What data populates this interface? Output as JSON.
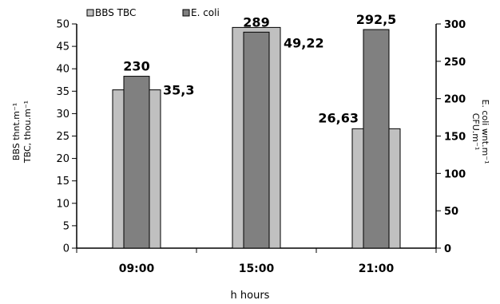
{
  "chart_data": {
    "type": "bar",
    "categories": [
      "09:00",
      "15:00",
      "21:00"
    ],
    "series": [
      {
        "name": "BBS TBC",
        "axis": "left",
        "color": "#c0c0c0",
        "values": [
          35.3,
          49.22,
          26.63
        ],
        "labels": [
          "35,3",
          "49,22",
          "26,63"
        ]
      },
      {
        "name": "E. coli",
        "axis": "right",
        "color": "#808080",
        "values": [
          230,
          289,
          292.5
        ],
        "labels": [
          "230",
          "289",
          "292,5"
        ]
      }
    ],
    "xlabel": "h hours",
    "ylabel_left": [
      "BBS thnt.m⁻¹",
      "TBC, thou.m⁻¹"
    ],
    "ylabel_right": [
      "E. coli wnt.m⁻¹",
      "CFU.m⁻¹"
    ],
    "ylim_left": [
      0,
      50
    ],
    "ylim_right": [
      0,
      300
    ],
    "yticks_left": [
      "0",
      "5",
      "10",
      "15",
      "20",
      "25",
      "30",
      "35",
      "40",
      "45",
      "50"
    ],
    "yticks_right": [
      "0",
      "50",
      "100",
      "150",
      "200",
      "250",
      "300"
    ],
    "legend_position": "top-left",
    "grid": false
  }
}
